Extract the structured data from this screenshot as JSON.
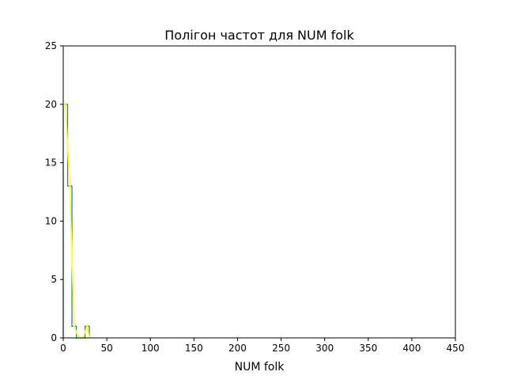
{
  "chart_data": {
    "type": "line",
    "title": "Полігон частот для NUM folk",
    "xlabel": "NUM folk",
    "ylabel": "",
    "xlim": [
      0,
      450
    ],
    "ylim": [
      0,
      25
    ],
    "xticks": [
      0,
      50,
      100,
      150,
      200,
      250,
      300,
      350,
      400,
      450
    ],
    "yticks": [
      0,
      5,
      10,
      15,
      20,
      25
    ],
    "grid": false,
    "legend": "none",
    "series": [
      {
        "style": "step",
        "color": "#1f77b4",
        "x": [
          0,
          5,
          10,
          15,
          20,
          25,
          30
        ],
        "y": [
          20,
          13,
          1,
          0,
          0,
          1,
          1
        ]
      },
      {
        "style": "line",
        "color": "#ffff33",
        "x": [
          0,
          2.5,
          7.5,
          12.5,
          17.5,
          22.5,
          27.5,
          30
        ],
        "y": [
          20,
          20,
          13,
          1,
          0,
          0,
          1,
          0
        ]
      }
    ]
  }
}
